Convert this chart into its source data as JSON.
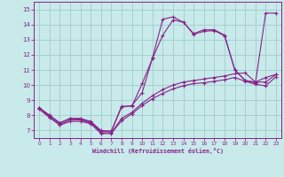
{
  "xlabel": "Windchill (Refroidissement éolien,°C)",
  "background_color": "#c8eaea",
  "grid_color": "#a0cccc",
  "line_color": "#882288",
  "xlim": [
    -0.5,
    23.5
  ],
  "ylim": [
    6.5,
    15.5
  ],
  "yticks": [
    7,
    8,
    9,
    10,
    11,
    12,
    13,
    14,
    15
  ],
  "xticks": [
    0,
    1,
    2,
    3,
    4,
    5,
    6,
    7,
    8,
    9,
    10,
    11,
    12,
    13,
    14,
    15,
    16,
    17,
    18,
    19,
    20,
    21,
    22,
    23
  ],
  "series1_x": [
    0,
    1,
    2,
    3,
    4,
    5,
    6,
    7,
    8,
    9,
    10,
    11,
    12,
    13,
    14,
    15,
    16,
    17,
    18,
    19,
    20,
    21,
    22,
    23
  ],
  "series1_y": [
    8.5,
    8.0,
    7.5,
    7.8,
    7.8,
    7.6,
    7.0,
    6.95,
    8.6,
    8.6,
    10.1,
    11.75,
    13.3,
    14.3,
    14.15,
    13.4,
    13.65,
    13.65,
    13.3,
    11.0,
    10.3,
    10.2,
    10.5,
    10.7
  ],
  "series2_x": [
    0,
    1,
    2,
    3,
    4,
    5,
    6,
    7,
    8,
    9,
    10,
    11,
    12,
    13,
    14,
    15,
    16,
    17,
    18,
    19,
    20,
    21,
    22,
    23
  ],
  "series2_y": [
    8.5,
    8.0,
    7.5,
    7.8,
    7.75,
    7.55,
    6.95,
    6.95,
    8.55,
    8.65,
    9.5,
    11.8,
    14.35,
    14.5,
    14.15,
    13.35,
    13.55,
    13.6,
    13.25,
    11.0,
    10.3,
    10.15,
    14.75,
    14.75
  ],
  "series3_x": [
    0,
    1,
    2,
    3,
    4,
    5,
    6,
    7,
    8,
    9,
    10,
    11,
    12,
    13,
    14,
    15,
    16,
    17,
    18,
    19,
    20,
    21,
    22,
    23
  ],
  "series3_y": [
    8.5,
    7.9,
    7.4,
    7.7,
    7.7,
    7.5,
    6.85,
    6.85,
    7.8,
    8.2,
    8.8,
    9.3,
    9.7,
    10.0,
    10.2,
    10.3,
    10.4,
    10.5,
    10.6,
    10.75,
    10.8,
    10.2,
    10.2,
    10.7
  ],
  "series4_x": [
    0,
    1,
    2,
    3,
    4,
    5,
    6,
    7,
    8,
    9,
    10,
    11,
    12,
    13,
    14,
    15,
    16,
    17,
    18,
    19,
    20,
    21,
    22,
    23
  ],
  "series4_y": [
    8.4,
    7.85,
    7.35,
    7.6,
    7.6,
    7.45,
    6.8,
    6.8,
    7.65,
    8.1,
    8.65,
    9.1,
    9.45,
    9.75,
    9.95,
    10.1,
    10.15,
    10.25,
    10.35,
    10.5,
    10.25,
    10.05,
    9.95,
    10.55
  ]
}
